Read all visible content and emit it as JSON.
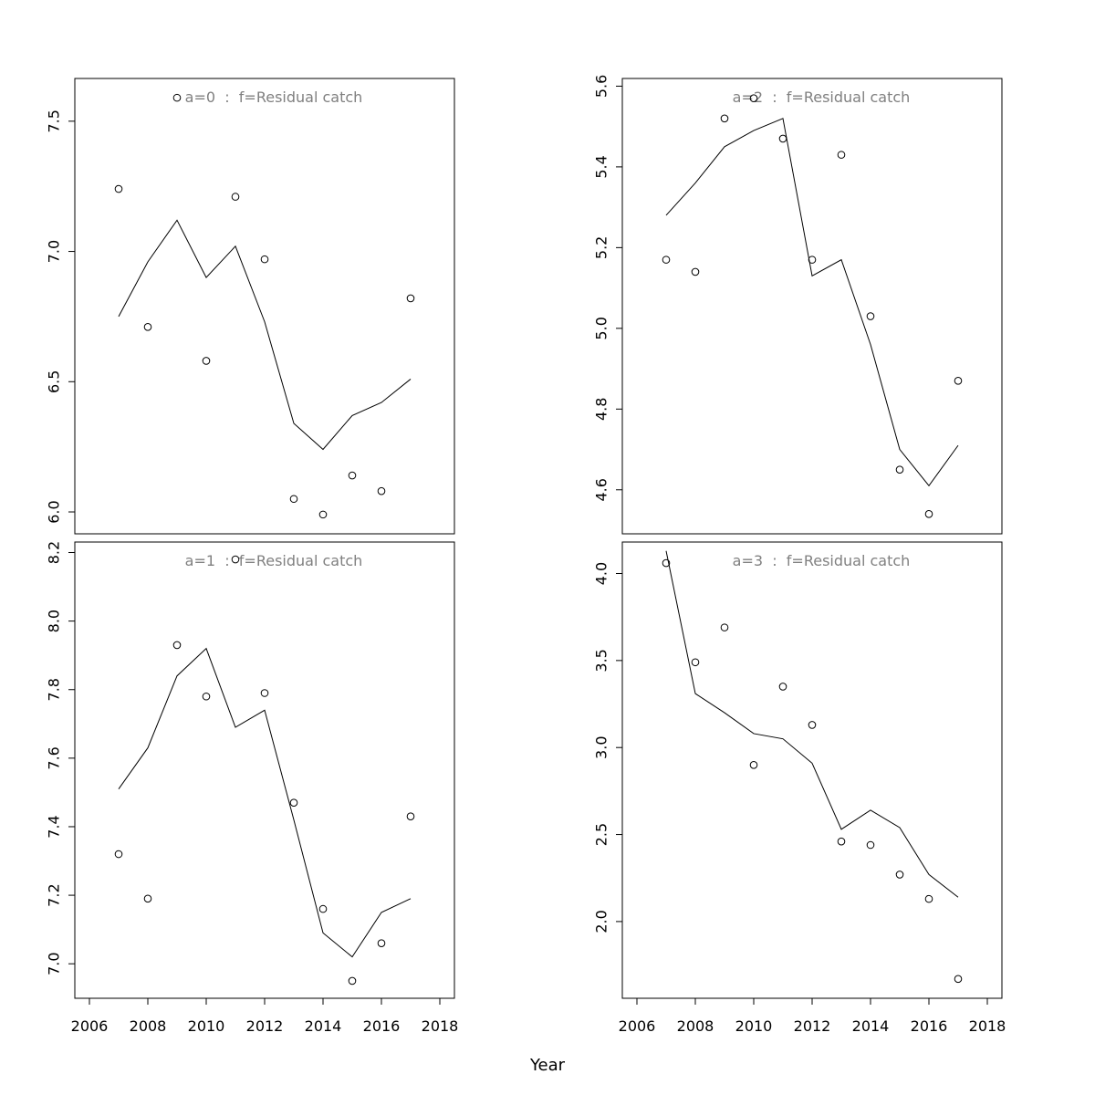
{
  "figure": {
    "xlabel": "Year",
    "colors": {
      "axis": "#000000",
      "points": "#000000",
      "line": "#000000",
      "title": "#808080"
    }
  },
  "chart_data": [
    {
      "type": "scatter",
      "title": "a=0  :  f=Residual catch",
      "x": [
        2007,
        2008,
        2009,
        2010,
        2011,
        2012,
        2013,
        2014,
        2015,
        2016,
        2017
      ],
      "observed": [
        7.24,
        6.71,
        7.59,
        6.58,
        7.21,
        6.97,
        6.05,
        5.99,
        6.14,
        6.08,
        6.82
      ],
      "fitted": [
        6.75,
        6.96,
        7.12,
        6.9,
        7.02,
        6.73,
        6.34,
        6.24,
        6.37,
        6.42,
        6.51
      ],
      "xlim": [
        2006,
        2018
      ],
      "ylim": [
        5.93,
        7.65
      ],
      "yticks": [
        6.0,
        6.5,
        7.0,
        7.5
      ],
      "yticklabels": [
        "6.0",
        "6.5",
        "7.0",
        "7.5"
      ],
      "grid": false
    },
    {
      "type": "scatter",
      "title": "a=1  :  f=Residual catch",
      "x": [
        2007,
        2008,
        2009,
        2010,
        2011,
        2012,
        2013,
        2014,
        2015,
        2016,
        2017
      ],
      "observed": [
        7.32,
        7.19,
        7.93,
        7.78,
        8.18,
        7.79,
        7.47,
        7.16,
        6.95,
        7.06,
        7.43
      ],
      "fitted": [
        7.51,
        7.63,
        7.84,
        7.92,
        7.69,
        7.74,
        7.42,
        7.09,
        7.02,
        7.15,
        7.19
      ],
      "xlim": [
        2006,
        2018
      ],
      "ylim": [
        6.91,
        8.22
      ],
      "yticks": [
        7.0,
        7.2,
        7.4,
        7.6,
        7.8,
        8.0,
        8.2
      ],
      "yticklabels": [
        "7.0",
        "7.2",
        "7.4",
        "7.6",
        "7.8",
        "8.0",
        "8.2"
      ],
      "xticks": [
        2006,
        2008,
        2010,
        2012,
        2014,
        2016,
        2018
      ],
      "xticklabels": [
        "2006",
        "2008",
        "2010",
        "2012",
        "2014",
        "2016",
        "2018"
      ],
      "grid": false
    },
    {
      "type": "scatter",
      "title": "a=2  :  f=Residual catch",
      "x": [
        2007,
        2008,
        2009,
        2010,
        2011,
        2012,
        2013,
        2014,
        2015,
        2016,
        2017
      ],
      "observed": [
        5.17,
        5.14,
        5.52,
        5.57,
        5.47,
        5.17,
        5.43,
        5.03,
        4.65,
        4.54,
        4.87
      ],
      "fitted": [
        5.28,
        5.36,
        5.45,
        5.49,
        5.52,
        5.13,
        5.17,
        4.96,
        4.7,
        4.61,
        4.71
      ],
      "xlim": [
        2006,
        2018
      ],
      "ylim": [
        4.5,
        5.61
      ],
      "yticks": [
        4.6,
        4.8,
        5.0,
        5.2,
        5.4,
        5.6
      ],
      "yticklabels": [
        "4.6",
        "4.8",
        "5.0",
        "5.2",
        "5.4",
        "5.6"
      ],
      "grid": false
    },
    {
      "type": "scatter",
      "title": "a=3  :  f=Residual catch",
      "x": [
        2007,
        2008,
        2009,
        2010,
        2011,
        2012,
        2013,
        2014,
        2015,
        2016,
        2017
      ],
      "observed": [
        4.06,
        3.49,
        3.69,
        2.9,
        3.35,
        3.13,
        2.46,
        2.44,
        2.27,
        2.13,
        1.67
      ],
      "fitted": [
        4.13,
        3.31,
        3.2,
        3.08,
        3.05,
        2.91,
        2.53,
        2.64,
        2.54,
        2.27,
        2.14
      ],
      "xlim": [
        2006,
        2018
      ],
      "ylim": [
        1.58,
        4.16
      ],
      "yticks": [
        2.0,
        2.5,
        3.0,
        3.5,
        4.0
      ],
      "yticklabels": [
        "2.0",
        "2.5",
        "3.0",
        "3.5",
        "4.0"
      ],
      "xticks": [
        2006,
        2008,
        2010,
        2012,
        2014,
        2016,
        2018
      ],
      "xticklabels": [
        "2006",
        "2008",
        "2010",
        "2012",
        "2014",
        "2016",
        "2018"
      ],
      "grid": false
    }
  ]
}
